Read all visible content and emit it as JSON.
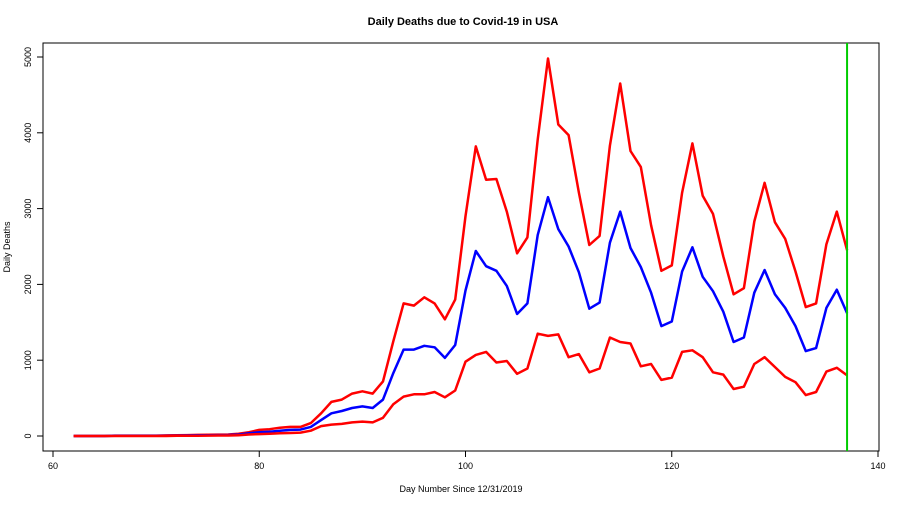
{
  "chart_data": {
    "type": "line",
    "title": "Daily Deaths due to Covid-19 in USA",
    "xlabel": "Day Number Since 12/31/2019",
    "ylabel": "Daily Deaths",
    "xlim": [
      60,
      140
    ],
    "ylim": [
      0,
      5000
    ],
    "xticks": [
      "60",
      "80",
      "100",
      "120",
      "140"
    ],
    "yticks": [
      "0",
      "1000",
      "2000",
      "3000",
      "4000",
      "5000"
    ],
    "grid": false,
    "legend": "none",
    "x": [
      62,
      63,
      64,
      65,
      66,
      67,
      68,
      69,
      70,
      71,
      72,
      73,
      74,
      75,
      76,
      77,
      78,
      79,
      80,
      81,
      82,
      83,
      84,
      85,
      86,
      87,
      88,
      89,
      90,
      91,
      92,
      93,
      94,
      95,
      96,
      97,
      98,
      99,
      100,
      101,
      102,
      103,
      104,
      105,
      106,
      107,
      108,
      109,
      110,
      111,
      112,
      113,
      114,
      115,
      116,
      117,
      118,
      119,
      120,
      121,
      122,
      123,
      124,
      125,
      126,
      127,
      128,
      129,
      130,
      131,
      132,
      133,
      134,
      135,
      136,
      137
    ],
    "series": [
      {
        "color": "#ff0000",
        "values": [
          0,
          0,
          0,
          0,
          5,
          5,
          5,
          5,
          5,
          8,
          10,
          12,
          14,
          16,
          18,
          20,
          30,
          50,
          80,
          90,
          110,
          120,
          120,
          170,
          300,
          450,
          480,
          560,
          590,
          560,
          720,
          1250,
          1750,
          1720,
          1830,
          1750,
          1540,
          1800,
          2900,
          3820,
          3380,
          3390,
          2960,
          2410,
          2620,
          3910,
          4980,
          4110,
          3970,
          3210,
          2520,
          2640,
          3830,
          4650,
          3760,
          3550,
          2780,
          2180,
          2250,
          3210,
          3860,
          3170,
          2930,
          2370,
          1870,
          1950,
          2830,
          3340,
          2820,
          2600,
          2170,
          1700,
          1750,
          2530,
          2960,
          2450
        ]
      },
      {
        "color": "#0000ff",
        "values": [
          0,
          0,
          0,
          0,
          2,
          2,
          2,
          2,
          2,
          4,
          6,
          8,
          9,
          10,
          12,
          13,
          18,
          35,
          50,
          55,
          70,
          80,
          85,
          120,
          210,
          300,
          330,
          370,
          390,
          370,
          480,
          830,
          1140,
          1140,
          1190,
          1170,
          1030,
          1200,
          1920,
          2440,
          2240,
          2180,
          1980,
          1610,
          1750,
          2650,
          3150,
          2730,
          2500,
          2160,
          1680,
          1760,
          2550,
          2960,
          2480,
          2230,
          1890,
          1450,
          1510,
          2170,
          2490,
          2100,
          1910,
          1640,
          1240,
          1300,
          1890,
          2190,
          1870,
          1690,
          1450,
          1120,
          1160,
          1690,
          1930,
          1620
        ]
      },
      {
        "color": "#ff0000",
        "values": [
          0,
          0,
          0,
          0,
          0,
          0,
          0,
          0,
          0,
          0,
          2,
          3,
          4,
          5,
          6,
          7,
          10,
          20,
          25,
          30,
          35,
          40,
          45,
          70,
          130,
          150,
          160,
          180,
          190,
          180,
          240,
          420,
          520,
          550,
          550,
          580,
          510,
          600,
          980,
          1070,
          1110,
          970,
          990,
          820,
          890,
          1350,
          1320,
          1340,
          1040,
          1080,
          840,
          890,
          1300,
          1240,
          1220,
          920,
          950,
          740,
          770,
          1110,
          1130,
          1040,
          840,
          810,
          620,
          650,
          950,
          1040,
          910,
          780,
          710,
          540,
          580,
          850,
          900,
          800
        ]
      }
    ],
    "vline": {
      "x": 137,
      "color": "#00cc00"
    }
  }
}
